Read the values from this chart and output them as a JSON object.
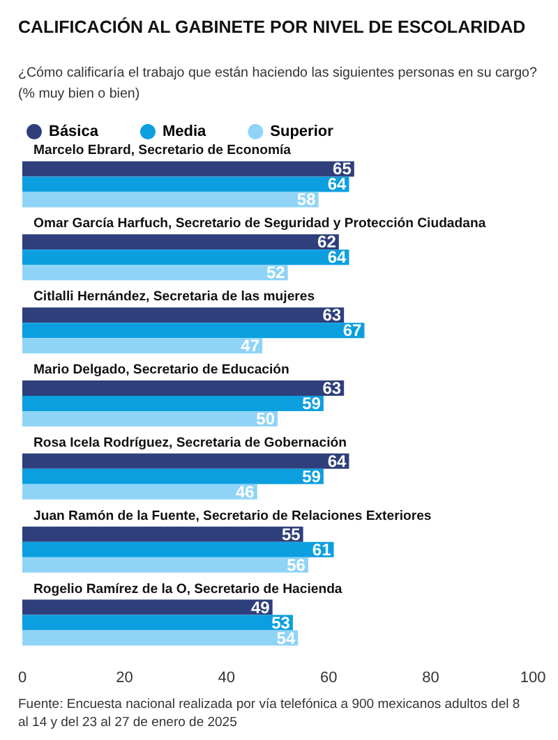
{
  "chart_data": {
    "type": "bar",
    "orientation": "horizontal",
    "title": "CALIFICACIÓN AL GABINETE POR NIVEL DE ESCOLARIDAD",
    "subtitle": "¿Cómo calificaría el trabajo que están haciendo las siguientes personas en su cargo?\n(% muy bien o bien)",
    "categories": [
      "Marcelo Ebrard, Secretario de Economía",
      "Omar García Harfuch, Secretario de Seguridad y Protección Ciudadana",
      "Citlalli Hernández, Secretaria de las mujeres",
      "Mario Delgado, Secretario de Educación",
      "Rosa Icela Rodríguez, Secretaria de Gobernación",
      "Juan Ramón de la Fuente, Secretario de Relaciones Exteriores",
      "Rogelio Ramírez de la O, Secretario de Hacienda"
    ],
    "series": [
      {
        "name": "Básica",
        "color": "#2e3f7c",
        "values": [
          65,
          62,
          63,
          63,
          64,
          55,
          49
        ]
      },
      {
        "name": "Media",
        "color": "#0b9fe0",
        "values": [
          64,
          64,
          67,
          59,
          59,
          61,
          53
        ]
      },
      {
        "name": "Superior",
        "color": "#8fd4f7",
        "values": [
          58,
          52,
          47,
          50,
          46,
          56,
          54
        ]
      }
    ],
    "xlim": [
      0,
      100
    ],
    "xticks": [
      0,
      20,
      40,
      60,
      80,
      100
    ],
    "data_labels": true,
    "legend": "top left",
    "grid": false,
    "annotations": [
      "Fuente: Encuesta nacional realizada por vía telefónica a 900 mexicanos adultos del 8 al 14 y del 23 al 27 de enero de 2025"
    ]
  }
}
